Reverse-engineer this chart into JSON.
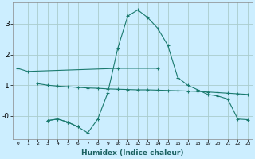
{
  "xlabel": "Humidex (Indice chaleur)",
  "bg_color": "#cceeff",
  "grid_color": "#aacccc",
  "line_color": "#1a7a6e",
  "ylim": [
    -0.75,
    3.7
  ],
  "yticks": [
    0,
    1,
    2,
    3
  ],
  "ytick_labels": [
    "-0",
    "1",
    "2",
    "3"
  ],
  "line1_x": [
    0,
    1,
    10,
    14
  ],
  "line1_y": [
    1.55,
    1.45,
    1.55,
    1.55
  ],
  "line2_x": [
    2,
    3,
    4,
    5,
    6,
    7,
    8,
    9,
    10,
    11,
    12,
    13,
    14,
    15,
    16,
    17,
    18,
    19,
    20,
    21,
    22,
    23
  ],
  "line2_y": [
    1.05,
    1.0,
    0.97,
    0.95,
    0.93,
    0.91,
    0.9,
    0.88,
    0.87,
    0.86,
    0.85,
    0.85,
    0.84,
    0.83,
    0.82,
    0.81,
    0.8,
    0.78,
    0.76,
    0.74,
    0.72,
    0.7
  ],
  "line3_x": [
    3,
    4,
    5,
    6,
    7,
    8,
    9,
    10,
    11,
    12,
    13,
    14,
    15,
    16,
    17,
    18,
    19,
    20,
    21,
    22,
    23
  ],
  "line3_y": [
    -0.15,
    -0.1,
    -0.2,
    -0.35,
    -0.55,
    -0.1,
    0.75,
    2.2,
    3.25,
    3.45,
    3.2,
    2.85,
    2.3,
    1.25,
    1.0,
    0.85,
    0.7,
    0.65,
    0.55,
    -0.1,
    -0.12
  ],
  "line4_x": [
    3,
    4,
    5,
    6
  ],
  "line4_y": [
    -0.15,
    -0.1,
    -0.2,
    -0.35
  ]
}
